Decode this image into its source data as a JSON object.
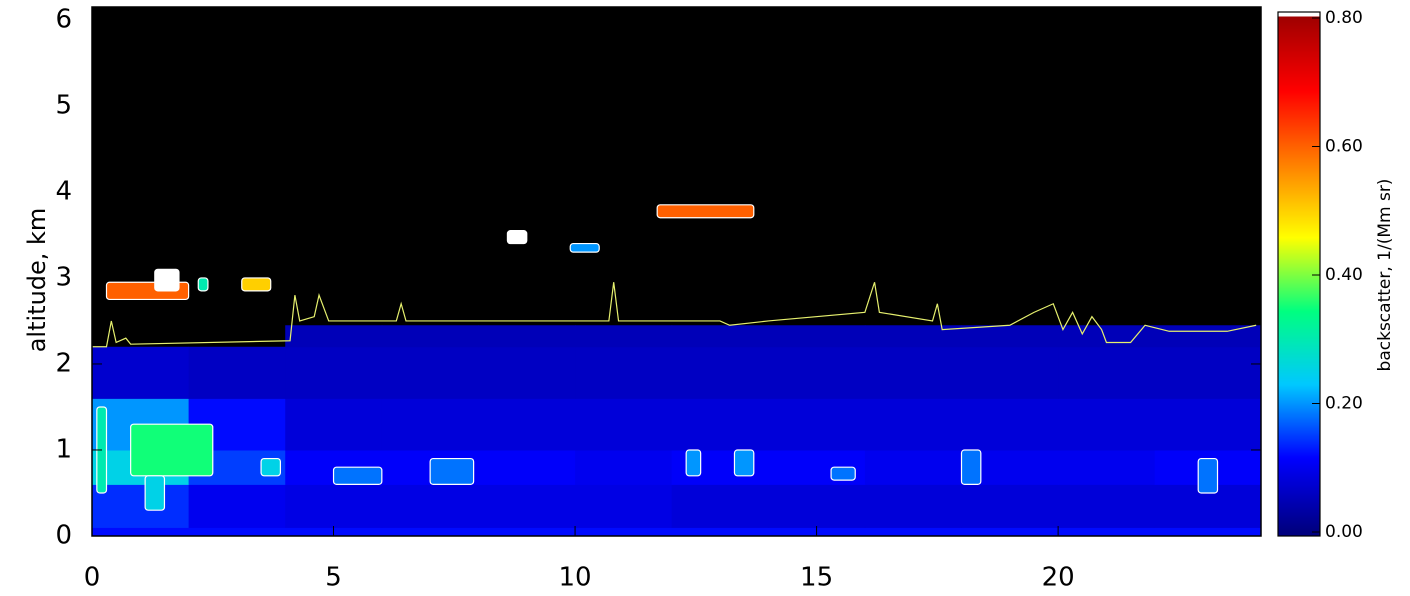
{
  "chart_data": {
    "type": "heatmap",
    "ylabel": "altitude, km",
    "colorbar_label": "backscatter, 1/(Mm sr)",
    "xlim": [
      0,
      24.2
    ],
    "ylim": [
      0,
      6.15
    ],
    "clim": [
      0,
      0.8
    ],
    "xticks": [
      0,
      5,
      10,
      15,
      20
    ],
    "yticks": [
      0,
      1,
      2,
      3,
      4,
      5,
      6
    ],
    "cticks": [
      {
        "value": 0,
        "label": "0.00"
      },
      {
        "value": 0.2,
        "label": "0.20"
      },
      {
        "value": 0.4,
        "label": "0.40"
      },
      {
        "value": 0.6,
        "label": "0.60"
      },
      {
        "value": 0.8,
        "label": "0.80"
      }
    ],
    "colormap": [
      "#000080",
      "#0000ff",
      "#00c8ff",
      "#00ff80",
      "#ffff00",
      "#ff8000",
      "#ff0000",
      "#a00000"
    ],
    "over_color": "#ffffff",
    "background": "#000000",
    "x_edges": [
      0,
      2,
      4,
      6,
      8,
      10,
      12,
      14,
      16,
      18,
      20,
      22,
      24.2
    ],
    "y_edges": [
      0,
      0.1,
      0.6,
      1.0,
      1.6,
      2.2,
      2.45
    ],
    "z": [
      [
        0.12,
        0.12,
        0.12,
        0.12,
        0.12,
        0.12,
        0.12,
        0.12,
        0.12,
        0.12,
        0.12,
        0.12
      ],
      [
        0.14,
        0.1,
        0.09,
        0.09,
        0.09,
        0.09,
        0.08,
        0.08,
        0.08,
        0.08,
        0.08,
        0.08
      ],
      [
        0.25,
        0.15,
        0.11,
        0.11,
        0.11,
        0.1,
        0.11,
        0.11,
        0.1,
        0.1,
        0.1,
        0.11
      ],
      [
        0.2,
        0.12,
        0.08,
        0.08,
        0.08,
        0.08,
        0.08,
        0.08,
        0.08,
        0.08,
        0.08,
        0.08
      ],
      [
        0.07,
        0.06,
        0.06,
        0.06,
        0.06,
        0.06,
        0.06,
        0.06,
        0.06,
        0.06,
        0.06,
        0.06
      ],
      [
        null,
        null,
        0.05,
        0.05,
        0.05,
        0.05,
        0.05,
        0.05,
        0.05,
        0.05,
        0.05,
        0.05
      ]
    ],
    "clouds": [
      {
        "x": [
          0.3,
          2.0
        ],
        "y": [
          2.75,
          2.95
        ],
        "value": 0.6
      },
      {
        "x": [
          1.3,
          1.8
        ],
        "y": [
          2.85,
          3.1
        ],
        "value": 0.9
      },
      {
        "x": [
          2.2,
          2.4
        ],
        "y": [
          2.85,
          3.0
        ],
        "value": 0.3
      },
      {
        "x": [
          3.1,
          3.7
        ],
        "y": [
          2.85,
          3.0
        ],
        "value": 0.5
      },
      {
        "x": [
          8.6,
          9.0
        ],
        "y": [
          3.4,
          3.55
        ],
        "value": 0.9
      },
      {
        "x": [
          9.9,
          10.5
        ],
        "y": [
          3.3,
          3.4
        ],
        "value": 0.2
      },
      {
        "x": [
          11.7,
          13.7
        ],
        "y": [
          3.7,
          3.85
        ],
        "value": 0.6
      },
      {
        "x": [
          0.1,
          0.3
        ],
        "y": [
          0.5,
          1.5
        ],
        "value": 0.3
      },
      {
        "x": [
          0.8,
          2.5
        ],
        "y": [
          0.7,
          1.3
        ],
        "value": 0.35
      },
      {
        "x": [
          1.1,
          1.5
        ],
        "y": [
          0.3,
          0.7
        ],
        "value": 0.25
      },
      {
        "x": [
          3.5,
          3.9
        ],
        "y": [
          0.7,
          0.9
        ],
        "value": 0.25
      },
      {
        "x": [
          5.0,
          6.0
        ],
        "y": [
          0.6,
          0.8
        ],
        "value": 0.18
      },
      {
        "x": [
          7.0,
          7.9
        ],
        "y": [
          0.6,
          0.9
        ],
        "value": 0.18
      },
      {
        "x": [
          12.3,
          12.6
        ],
        "y": [
          0.7,
          1.0
        ],
        "value": 0.2
      },
      {
        "x": [
          13.3,
          13.7
        ],
        "y": [
          0.7,
          1.0
        ],
        "value": 0.2
      },
      {
        "x": [
          15.3,
          15.8
        ],
        "y": [
          0.65,
          0.8
        ],
        "value": 0.18
      },
      {
        "x": [
          18.0,
          18.4
        ],
        "y": [
          0.6,
          1.0
        ],
        "value": 0.18
      },
      {
        "x": [
          22.9,
          23.3
        ],
        "y": [
          0.5,
          0.9
        ],
        "value": 0.18
      }
    ],
    "line": {
      "color": "#e6f06e",
      "x": [
        0,
        0.3,
        0.4,
        0.5,
        0.7,
        0.8,
        4.1,
        4.2,
        4.3,
        4.6,
        4.7,
        4.9,
        6.3,
        6.4,
        6.5,
        10.7,
        10.8,
        10.9,
        13,
        13.2,
        14,
        16,
        16.2,
        16.3,
        17.4,
        17.5,
        17.6,
        19,
        19.5,
        19.9,
        20.1,
        20.3,
        20.5,
        20.7,
        20.9,
        21,
        21.5,
        21.8,
        22.3,
        23.5,
        24.1
      ],
      "values": [
        2.2,
        2.2,
        2.5,
        2.25,
        2.3,
        2.23,
        2.27,
        2.8,
        2.5,
        2.55,
        2.8,
        2.5,
        2.5,
        2.7,
        2.5,
        2.5,
        2.95,
        2.5,
        2.5,
        2.45,
        2.5,
        2.6,
        2.95,
        2.6,
        2.5,
        2.7,
        2.4,
        2.45,
        2.6,
        2.7,
        2.4,
        2.6,
        2.35,
        2.55,
        2.4,
        2.25,
        2.25,
        2.45,
        2.38,
        2.38,
        2.45
      ]
    }
  }
}
